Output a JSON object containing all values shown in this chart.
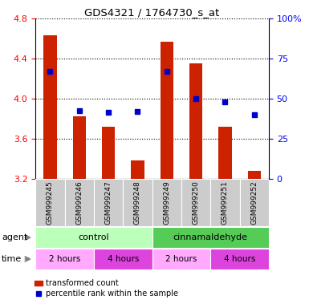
{
  "title": "GDS4321 / 1764730_s_at",
  "samples": [
    "GSM999245",
    "GSM999246",
    "GSM999247",
    "GSM999248",
    "GSM999249",
    "GSM999250",
    "GSM999251",
    "GSM999252"
  ],
  "red_values": [
    4.63,
    3.82,
    3.72,
    3.38,
    4.57,
    4.35,
    3.72,
    3.28
  ],
  "blue_values": [
    4.27,
    3.88,
    3.86,
    3.87,
    4.27,
    4.0,
    3.97,
    3.84
  ],
  "ymin": 3.2,
  "ymax": 4.8,
  "yticks_left": [
    3.2,
    3.6,
    4.0,
    4.4,
    4.8
  ],
  "yticks_right_labels": [
    "0",
    "25",
    "50",
    "75",
    "100%"
  ],
  "bar_color": "#cc2200",
  "dot_color": "#0000cc",
  "bar_baseline": 3.2,
  "agent_labels": [
    "control",
    "cinnamaldehyde"
  ],
  "agent_color_light": "#bbffbb",
  "agent_color_dark": "#55cc55",
  "time_labels": [
    "2 hours",
    "4 hours",
    "2 hours",
    "4 hours"
  ],
  "time_color_light": "#ffaaff",
  "time_color_dark": "#dd44dd",
  "sample_bg_color": "#cccccc",
  "grid_color": "#555555"
}
